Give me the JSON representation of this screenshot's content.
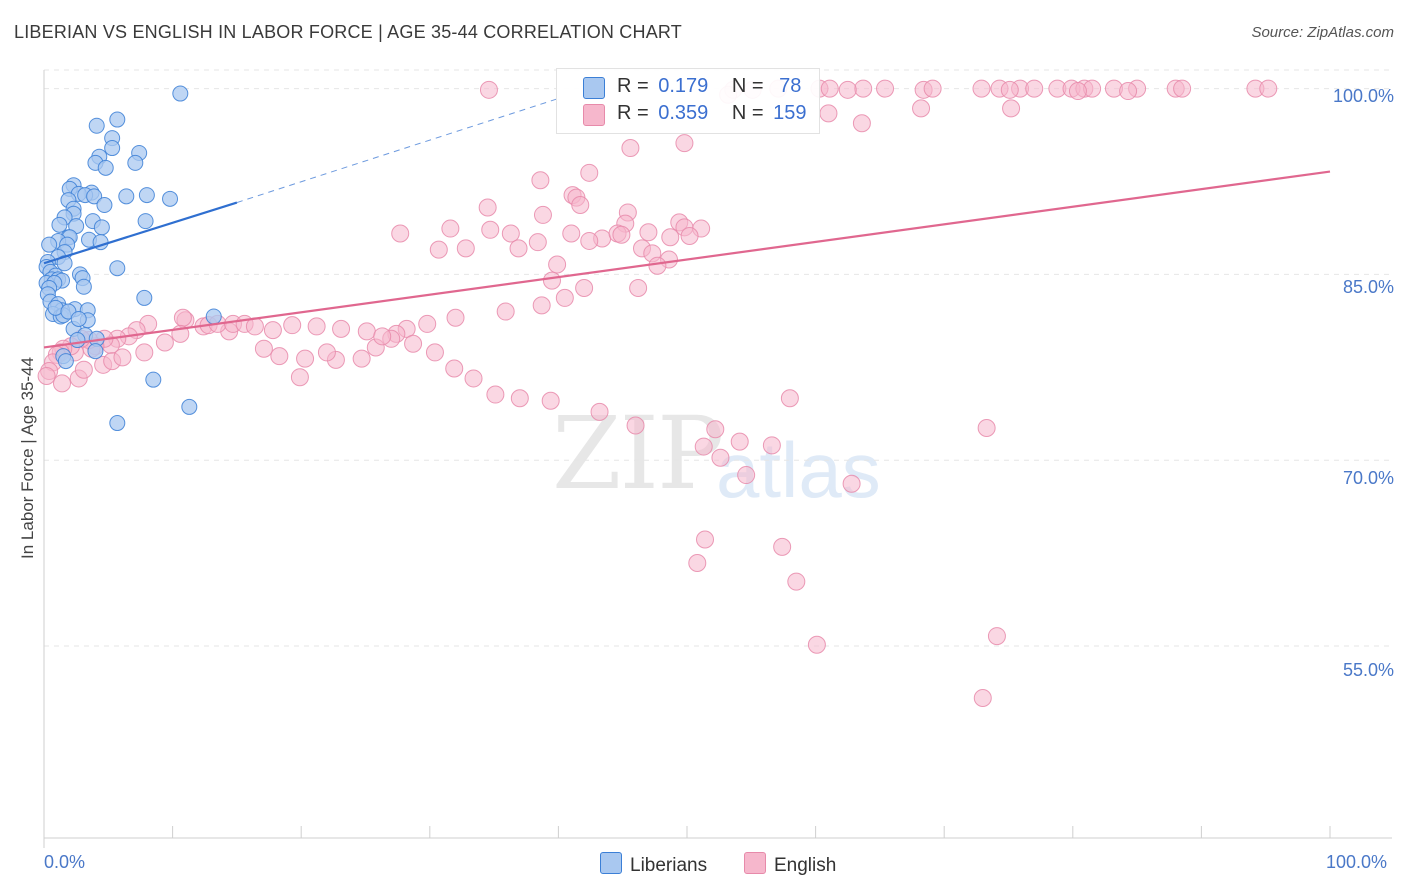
{
  "header": {
    "title": "LIBERIAN VS ENGLISH IN LABOR FORCE | AGE 35-44 CORRELATION CHART",
    "source": "Source: ZipAtlas.com"
  },
  "watermark": {
    "zip": "ZIP",
    "atlas": "atlas"
  },
  "legend": {
    "liberians": {
      "r_label": "R =",
      "r_value": "0.179",
      "n_label": "N =",
      "n_value": "78"
    },
    "english": {
      "r_label": "R =",
      "r_value": "0.359",
      "n_label": "N =",
      "n_value": "159"
    }
  },
  "bottom_legend": {
    "liberians": "Liberians",
    "english": "English"
  },
  "colors": {
    "liberians_fill": "#a9c8f0",
    "liberians_stroke": "#3b7fd6",
    "liberians_line": "#2f6fd0",
    "english_fill": "#f6b7cc",
    "english_stroke": "#e78aaa",
    "english_line": "#e0678f",
    "tick_text": "#4a78c8",
    "grid": "#e6e6e6"
  },
  "chart_data": {
    "type": "scatter",
    "title": "LIBERIAN VS ENGLISH IN LABOR FORCE | AGE 35-44 CORRELATION CHART",
    "xlabel": "",
    "ylabel": "In Labor Force | Age 35-44",
    "x_tick_labels": [
      "0.0%",
      "100.0%"
    ],
    "y_tick_labels": [
      "100.0%",
      "85.0%",
      "70.0%",
      "55.0%"
    ],
    "y_ticks": [
      100,
      85,
      70,
      55
    ],
    "xlim": [
      0,
      100
    ],
    "ylim": [
      39.5,
      101.5
    ],
    "grid": true,
    "series": [
      {
        "name": "Liberians",
        "r": 0.179,
        "n": 78,
        "trend": {
          "x0": 0,
          "y0": 85.9,
          "x1": 15,
          "y1": 90.8,
          "dashed_to_x": 40,
          "dashed_to_y": 99.2
        },
        "points": [
          [
            10.6,
            99.6
          ],
          [
            5.7,
            97.5
          ],
          [
            4.1,
            97.0
          ],
          [
            5.3,
            96.0
          ],
          [
            7.4,
            94.8
          ],
          [
            5.3,
            95.2
          ],
          [
            4.3,
            94.5
          ],
          [
            4.0,
            94.0
          ],
          [
            7.1,
            94.0
          ],
          [
            4.8,
            93.6
          ],
          [
            2.3,
            92.2
          ],
          [
            2.0,
            91.9
          ],
          [
            3.7,
            91.6
          ],
          [
            2.7,
            91.5
          ],
          [
            3.2,
            91.4
          ],
          [
            3.9,
            91.3
          ],
          [
            6.4,
            91.3
          ],
          [
            8.0,
            91.4
          ],
          [
            9.8,
            91.1
          ],
          [
            1.9,
            91.0
          ],
          [
            2.3,
            90.3
          ],
          [
            4.7,
            90.6
          ],
          [
            2.3,
            89.9
          ],
          [
            1.6,
            89.6
          ],
          [
            3.8,
            89.3
          ],
          [
            7.9,
            89.3
          ],
          [
            1.2,
            89.0
          ],
          [
            2.5,
            88.9
          ],
          [
            4.5,
            88.8
          ],
          [
            1.9,
            88.0
          ],
          [
            2.0,
            88.0
          ],
          [
            1.1,
            87.7
          ],
          [
            3.5,
            87.8
          ],
          [
            4.4,
            87.6
          ],
          [
            0.4,
            87.4
          ],
          [
            1.8,
            87.4
          ],
          [
            1.6,
            86.8
          ],
          [
            1.1,
            86.4
          ],
          [
            0.3,
            86.0
          ],
          [
            1.6,
            85.9
          ],
          [
            0.2,
            85.6
          ],
          [
            5.7,
            85.5
          ],
          [
            0.5,
            85.2
          ],
          [
            0.9,
            84.9
          ],
          [
            2.8,
            85.0
          ],
          [
            3.0,
            84.7
          ],
          [
            0.6,
            84.6
          ],
          [
            1.1,
            84.6
          ],
          [
            1.4,
            84.5
          ],
          [
            0.2,
            84.3
          ],
          [
            0.8,
            84.3
          ],
          [
            3.1,
            84.0
          ],
          [
            0.4,
            83.9
          ],
          [
            0.3,
            83.4
          ],
          [
            0.5,
            82.8
          ],
          [
            1.1,
            82.6
          ],
          [
            2.4,
            82.2
          ],
          [
            1.4,
            82.1
          ],
          [
            3.4,
            82.1
          ],
          [
            0.7,
            81.8
          ],
          [
            1.3,
            81.6
          ],
          [
            3.4,
            81.3
          ],
          [
            13.2,
            81.6
          ],
          [
            1.5,
            81.7
          ],
          [
            2.3,
            80.6
          ],
          [
            3.2,
            80.1
          ],
          [
            2.6,
            79.7
          ],
          [
            4.1,
            79.8
          ],
          [
            4.0,
            78.8
          ],
          [
            1.5,
            78.4
          ],
          [
            1.7,
            78.0
          ],
          [
            8.5,
            76.5
          ],
          [
            11.3,
            74.3
          ],
          [
            5.7,
            73.0
          ],
          [
            7.8,
            83.1
          ],
          [
            0.9,
            82.3
          ],
          [
            1.9,
            82.0
          ],
          [
            2.7,
            81.4
          ]
        ]
      },
      {
        "name": "English",
        "r": 0.359,
        "n": 159,
        "trend": {
          "x0": 0,
          "y0": 79.1,
          "x1": 100,
          "y1": 93.3
        },
        "points": [
          [
            34.6,
            99.9
          ],
          [
            57.1,
            100.0
          ],
          [
            60.3,
            100.0
          ],
          [
            61.1,
            100.0
          ],
          [
            63.7,
            100.0
          ],
          [
            65.4,
            100.0
          ],
          [
            68.4,
            99.9
          ],
          [
            69.1,
            100.0
          ],
          [
            74.3,
            100.0
          ],
          [
            72.9,
            100.0
          ],
          [
            75.9,
            100.0
          ],
          [
            77.0,
            100.0
          ],
          [
            78.8,
            100.0
          ],
          [
            79.9,
            100.0
          ],
          [
            80.9,
            100.0
          ],
          [
            81.5,
            100.0
          ],
          [
            83.2,
            100.0
          ],
          [
            85.0,
            100.0
          ],
          [
            88.0,
            100.0
          ],
          [
            88.5,
            100.0
          ],
          [
            94.2,
            100.0
          ],
          [
            95.2,
            100.0
          ],
          [
            75.1,
            99.9
          ],
          [
            62.5,
            99.9
          ],
          [
            55.1,
            99.9
          ],
          [
            53.6,
            99.9
          ],
          [
            80.4,
            99.8
          ],
          [
            84.3,
            99.8
          ],
          [
            61.0,
            98.0
          ],
          [
            53.2,
            99.5
          ],
          [
            75.2,
            98.4
          ],
          [
            63.6,
            97.2
          ],
          [
            68.2,
            98.4
          ],
          [
            49.8,
            95.6
          ],
          [
            45.6,
            95.2
          ],
          [
            42.4,
            93.2
          ],
          [
            41.1,
            91.4
          ],
          [
            38.6,
            92.6
          ],
          [
            41.4,
            91.2
          ],
          [
            41.7,
            90.6
          ],
          [
            45.4,
            90.0
          ],
          [
            34.5,
            90.4
          ],
          [
            38.8,
            89.8
          ],
          [
            45.2,
            89.1
          ],
          [
            47.0,
            88.4
          ],
          [
            43.4,
            87.9
          ],
          [
            49.4,
            89.2
          ],
          [
            51.1,
            88.7
          ],
          [
            49.8,
            88.8
          ],
          [
            44.6,
            88.3
          ],
          [
            42.4,
            87.7
          ],
          [
            36.3,
            88.3
          ],
          [
            31.6,
            88.7
          ],
          [
            38.4,
            87.6
          ],
          [
            44.9,
            88.2
          ],
          [
            46.5,
            87.1
          ],
          [
            48.7,
            88.0
          ],
          [
            50.2,
            88.1
          ],
          [
            47.3,
            86.7
          ],
          [
            34.7,
            88.6
          ],
          [
            27.7,
            88.3
          ],
          [
            41.0,
            88.3
          ],
          [
            32.8,
            87.1
          ],
          [
            36.9,
            87.1
          ],
          [
            30.7,
            87.0
          ],
          [
            48.6,
            86.2
          ],
          [
            47.7,
            85.7
          ],
          [
            39.9,
            85.8
          ],
          [
            39.5,
            84.5
          ],
          [
            42.0,
            83.9
          ],
          [
            46.2,
            83.9
          ],
          [
            40.5,
            83.1
          ],
          [
            38.7,
            82.5
          ],
          [
            35.9,
            82.0
          ],
          [
            32.0,
            81.5
          ],
          [
            29.8,
            81.0
          ],
          [
            28.2,
            80.6
          ],
          [
            27.4,
            80.2
          ],
          [
            27.0,
            79.8
          ],
          [
            25.8,
            79.1
          ],
          [
            24.7,
            78.2
          ],
          [
            22.7,
            78.1
          ],
          [
            22.0,
            78.7
          ],
          [
            20.3,
            78.2
          ],
          [
            19.9,
            76.7
          ],
          [
            18.3,
            78.4
          ],
          [
            17.1,
            79.0
          ],
          [
            14.4,
            80.4
          ],
          [
            12.4,
            80.8
          ],
          [
            11.0,
            81.3
          ],
          [
            10.8,
            81.5
          ],
          [
            8.1,
            81.0
          ],
          [
            7.2,
            80.5
          ],
          [
            6.6,
            80.0
          ],
          [
            5.7,
            79.8
          ],
          [
            5.2,
            79.3
          ],
          [
            4.7,
            79.8
          ],
          [
            4.0,
            79.2
          ],
          [
            3.7,
            79.0
          ],
          [
            3.5,
            79.7
          ],
          [
            2.9,
            79.8
          ],
          [
            2.4,
            78.7
          ],
          [
            2.1,
            79.2
          ],
          [
            1.5,
            79.0
          ],
          [
            1.3,
            78.7
          ],
          [
            1.0,
            78.5
          ],
          [
            0.7,
            77.9
          ],
          [
            0.4,
            77.2
          ],
          [
            0.2,
            76.8
          ],
          [
            1.4,
            76.2
          ],
          [
            2.7,
            76.6
          ],
          [
            3.1,
            77.3
          ],
          [
            4.6,
            77.7
          ],
          [
            5.3,
            78.0
          ],
          [
            6.1,
            78.3
          ],
          [
            7.8,
            78.7
          ],
          [
            9.4,
            79.5
          ],
          [
            10.6,
            80.2
          ],
          [
            12.8,
            80.9
          ],
          [
            13.5,
            81.0
          ],
          [
            14.7,
            81.0
          ],
          [
            15.6,
            81.0
          ],
          [
            16.4,
            80.8
          ],
          [
            17.8,
            80.5
          ],
          [
            19.3,
            80.9
          ],
          [
            21.2,
            80.8
          ],
          [
            23.1,
            80.6
          ],
          [
            25.1,
            80.4
          ],
          [
            26.3,
            80.0
          ],
          [
            28.7,
            79.4
          ],
          [
            30.4,
            78.7
          ],
          [
            31.9,
            77.4
          ],
          [
            33.4,
            76.6
          ],
          [
            35.1,
            75.3
          ],
          [
            37.0,
            75.0
          ],
          [
            39.4,
            74.8
          ],
          [
            43.2,
            73.9
          ],
          [
            46.0,
            72.8
          ],
          [
            52.2,
            72.5
          ],
          [
            54.6,
            68.8
          ],
          [
            58.5,
            60.2
          ],
          [
            62.8,
            68.1
          ],
          [
            73.3,
            72.6
          ],
          [
            74.1,
            55.8
          ],
          [
            73.0,
            50.8
          ],
          [
            54.1,
            71.5
          ],
          [
            51.3,
            71.1
          ],
          [
            52.6,
            70.2
          ],
          [
            50.8,
            61.7
          ],
          [
            57.4,
            63.0
          ],
          [
            60.1,
            55.1
          ],
          [
            51.4,
            63.6
          ],
          [
            56.6,
            71.2
          ],
          [
            58.0,
            75.0
          ]
        ]
      }
    ]
  }
}
